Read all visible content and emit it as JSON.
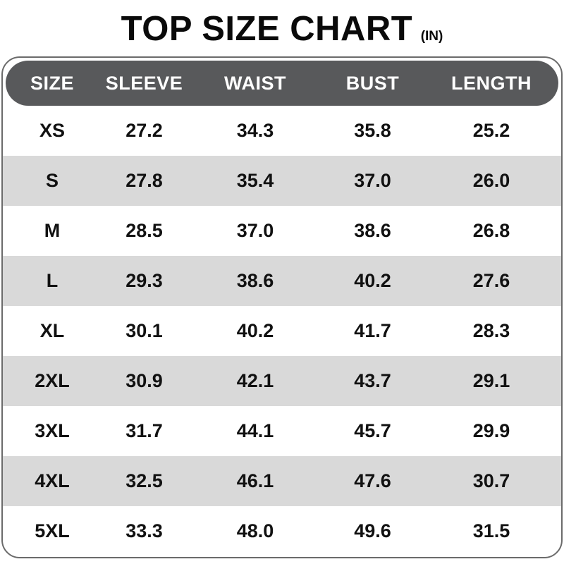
{
  "chart_data": {
    "type": "table",
    "title": "TOP SIZE CHART",
    "unit": "(IN)",
    "columns": [
      "SIZE",
      "SLEEVE",
      "WAIST",
      "BUST",
      "LENGTH"
    ],
    "rows": [
      [
        "XS",
        "27.2",
        "34.3",
        "35.8",
        "25.2"
      ],
      [
        "S",
        "27.8",
        "35.4",
        "37.0",
        "26.0"
      ],
      [
        "M",
        "28.5",
        "37.0",
        "38.6",
        "26.8"
      ],
      [
        "L",
        "29.3",
        "38.6",
        "40.2",
        "27.6"
      ],
      [
        "XL",
        "30.1",
        "40.2",
        "41.7",
        "28.3"
      ],
      [
        "2XL",
        "30.9",
        "42.1",
        "43.7",
        "29.1"
      ],
      [
        "3XL",
        "31.7",
        "44.1",
        "45.7",
        "29.9"
      ],
      [
        "4XL",
        "32.5",
        "46.1",
        "47.6",
        "30.7"
      ],
      [
        "5XL",
        "33.3",
        "48.0",
        "49.6",
        "31.5"
      ]
    ]
  },
  "colors": {
    "page_bg": "#ffffff",
    "title_color": "#0a0a0a",
    "header_bg": "#58595b",
    "header_text": "#ffffff",
    "stripe_bg": "#d9d9d9",
    "body_text": "#111111",
    "border_color": "#6b6b6b"
  }
}
